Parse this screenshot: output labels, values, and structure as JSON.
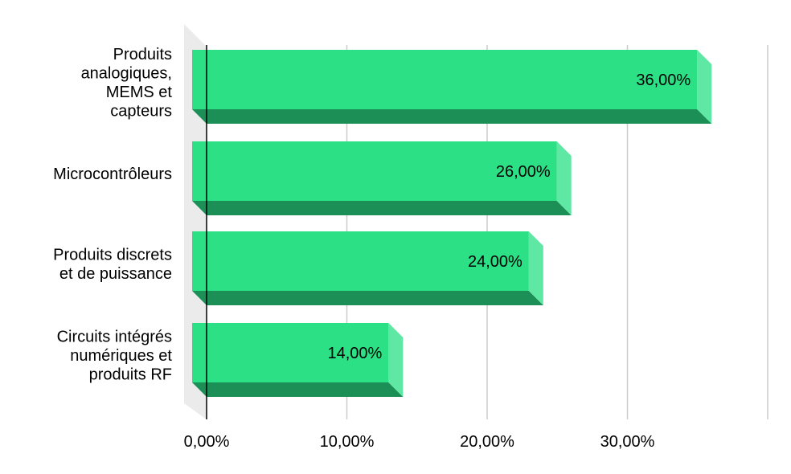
{
  "chart_data": {
    "type": "bar",
    "orientation": "horizontal",
    "style": "3d",
    "categories": [
      [
        "Produits",
        "analogiques,",
        "MEMS et",
        "capteurs"
      ],
      [
        "Microcontrôleurs"
      ],
      [
        "Produits discrets",
        "et de puissance"
      ],
      [
        "Circuits intégrés",
        "numériques et",
        "produits RF"
      ]
    ],
    "values": [
      36,
      26,
      24,
      14
    ],
    "value_labels": [
      "36,00%",
      "26,00%",
      "24,00%",
      "14,00%"
    ],
    "xticks": [
      0,
      10,
      20,
      30
    ],
    "xtick_labels": [
      "0,00%",
      "10,00%",
      "20,00%",
      "30,00%"
    ],
    "xlim": [
      0,
      40
    ],
    "grid": true,
    "title": "",
    "xlabel": "",
    "ylabel": "",
    "colors": {
      "bar_front": "#2ce085",
      "bar_bottom": "#1b8f55",
      "bar_side": "#5ee8a4",
      "grid": "#cccccc",
      "wall": "#ebebeb",
      "axis": "#000000"
    }
  }
}
